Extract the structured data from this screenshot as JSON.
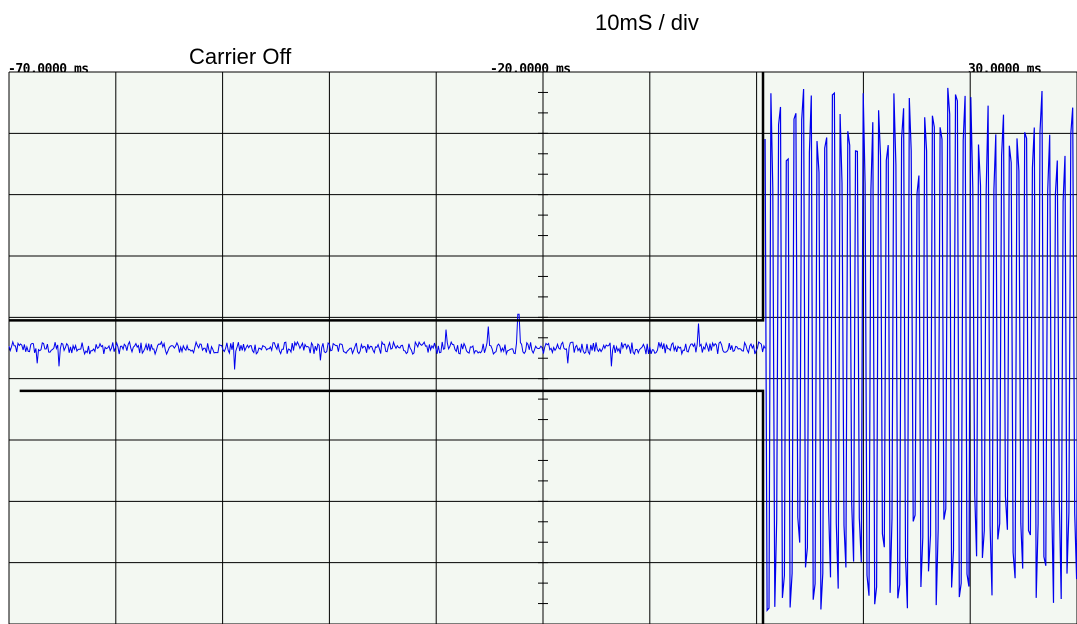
{
  "annotations": {
    "time_per_div": "10mS / div",
    "carrier_state": "Carrier Off"
  },
  "chart_data": {
    "type": "line",
    "x_ticks": [
      {
        "value": -70,
        "label": "-70.0000 ms"
      },
      {
        "value": -20,
        "label": "-20.0000 ms"
      },
      {
        "value": 30,
        "label": "30.0000 ms"
      }
    ],
    "xlim": [
      -70,
      30
    ],
    "x_unit": "ms",
    "ylim": [
      -4.5,
      4.5
    ],
    "grid": true,
    "grid_divisions": {
      "x": 10,
      "y": 9
    },
    "colors": {
      "background": "#f3f8f2",
      "grid": "#000000",
      "signal": "#0000ee",
      "envelope": "#000000"
    },
    "series": [
      {
        "role": "noise_then_carrier",
        "color": "#0000ee",
        "noise_amplitude": 0.1,
        "noise_level": 0.0,
        "carrier_on_at": 0.8,
        "carrier_amplitude": 4.3,
        "spikes": [
          {
            "x": -67.4,
            "y": -0.25
          },
          {
            "x": -65.3,
            "y": -0.3
          },
          {
            "x": -48.9,
            "y": -0.35
          },
          {
            "x": -40.8,
            "y": -0.2
          },
          {
            "x": -29.1,
            "y": 0.3
          },
          {
            "x": -25.1,
            "y": 0.35
          },
          {
            "x": -22.3,
            "y": 0.55
          },
          {
            "x": -17.7,
            "y": -0.25
          },
          {
            "x": -13.6,
            "y": -0.3
          },
          {
            "x": -5.4,
            "y": 0.4
          }
        ]
      },
      {
        "role": "envelope",
        "color": "#000000",
        "upper": {
          "level": 0.45,
          "from": -70,
          "to": 0.6
        },
        "lower": {
          "level": -0.7,
          "from": -69.0,
          "to": 0.6
        },
        "step_x": 0.6,
        "upper_rise_to": 4.5,
        "lower_fall_to": -4.5
      }
    ]
  }
}
